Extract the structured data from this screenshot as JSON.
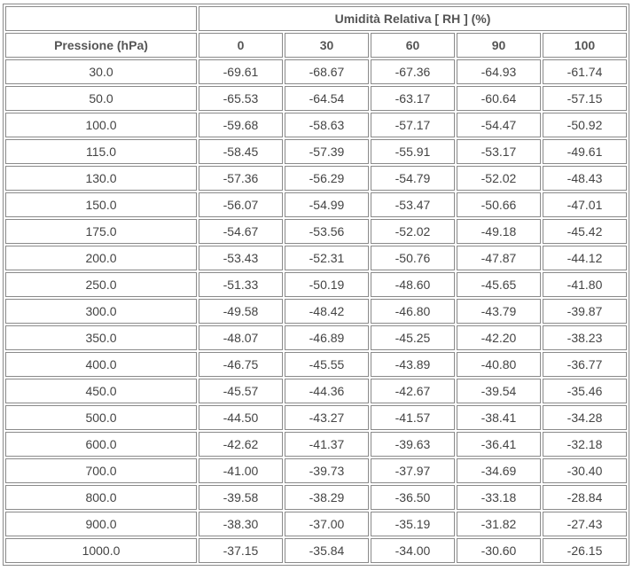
{
  "table": {
    "group_header": "Umidità Relativa [ RH ] (%)",
    "header": [
      "Pressione (hPa)",
      "0",
      "30",
      "60",
      "90",
      "100"
    ],
    "rows": [
      [
        "30.0",
        "-69.61",
        "-68.67",
        "-67.36",
        "-64.93",
        "-61.74"
      ],
      [
        "50.0",
        "-65.53",
        "-64.54",
        "-63.17",
        "-60.64",
        "-57.15"
      ],
      [
        "100.0",
        "-59.68",
        "-58.63",
        "-57.17",
        "-54.47",
        "-50.92"
      ],
      [
        "115.0",
        "-58.45",
        "-57.39",
        "-55.91",
        "-53.17",
        "-49.61"
      ],
      [
        "130.0",
        "-57.36",
        "-56.29",
        "-54.79",
        "-52.02",
        "-48.43"
      ],
      [
        "150.0",
        "-56.07",
        "-54.99",
        "-53.47",
        "-50.66",
        "-47.01"
      ],
      [
        "175.0",
        "-54.67",
        "-53.56",
        "-52.02",
        "-49.18",
        "-45.42"
      ],
      [
        "200.0",
        "-53.43",
        "-52.31",
        "-50.76",
        "-47.87",
        "-44.12"
      ],
      [
        "250.0",
        "-51.33",
        "-50.19",
        "-48.60",
        "-45.65",
        "-41.80"
      ],
      [
        "300.0",
        "-49.58",
        "-48.42",
        "-46.80",
        "-43.79",
        "-39.87"
      ],
      [
        "350.0",
        "-48.07",
        "-46.89",
        "-45.25",
        "-42.20",
        "-38.23"
      ],
      [
        "400.0",
        "-46.75",
        "-45.55",
        "-43.89",
        "-40.80",
        "-36.77"
      ],
      [
        "450.0",
        "-45.57",
        "-44.36",
        "-42.67",
        "-39.54",
        "-35.46"
      ],
      [
        "500.0",
        "-44.50",
        "-43.27",
        "-41.57",
        "-38.41",
        "-34.28"
      ],
      [
        "600.0",
        "-42.62",
        "-41.37",
        "-39.63",
        "-36.41",
        "-32.18"
      ],
      [
        "700.0",
        "-41.00",
        "-39.73",
        "-37.97",
        "-34.69",
        "-30.40"
      ],
      [
        "800.0",
        "-39.58",
        "-38.29",
        "-36.50",
        "-33.18",
        "-28.84"
      ],
      [
        "900.0",
        "-38.30",
        "-37.00",
        "-35.19",
        "-31.82",
        "-27.43"
      ],
      [
        "1000.0",
        "-37.15",
        "-35.84",
        "-34.00",
        "-30.60",
        "-26.15"
      ]
    ]
  }
}
